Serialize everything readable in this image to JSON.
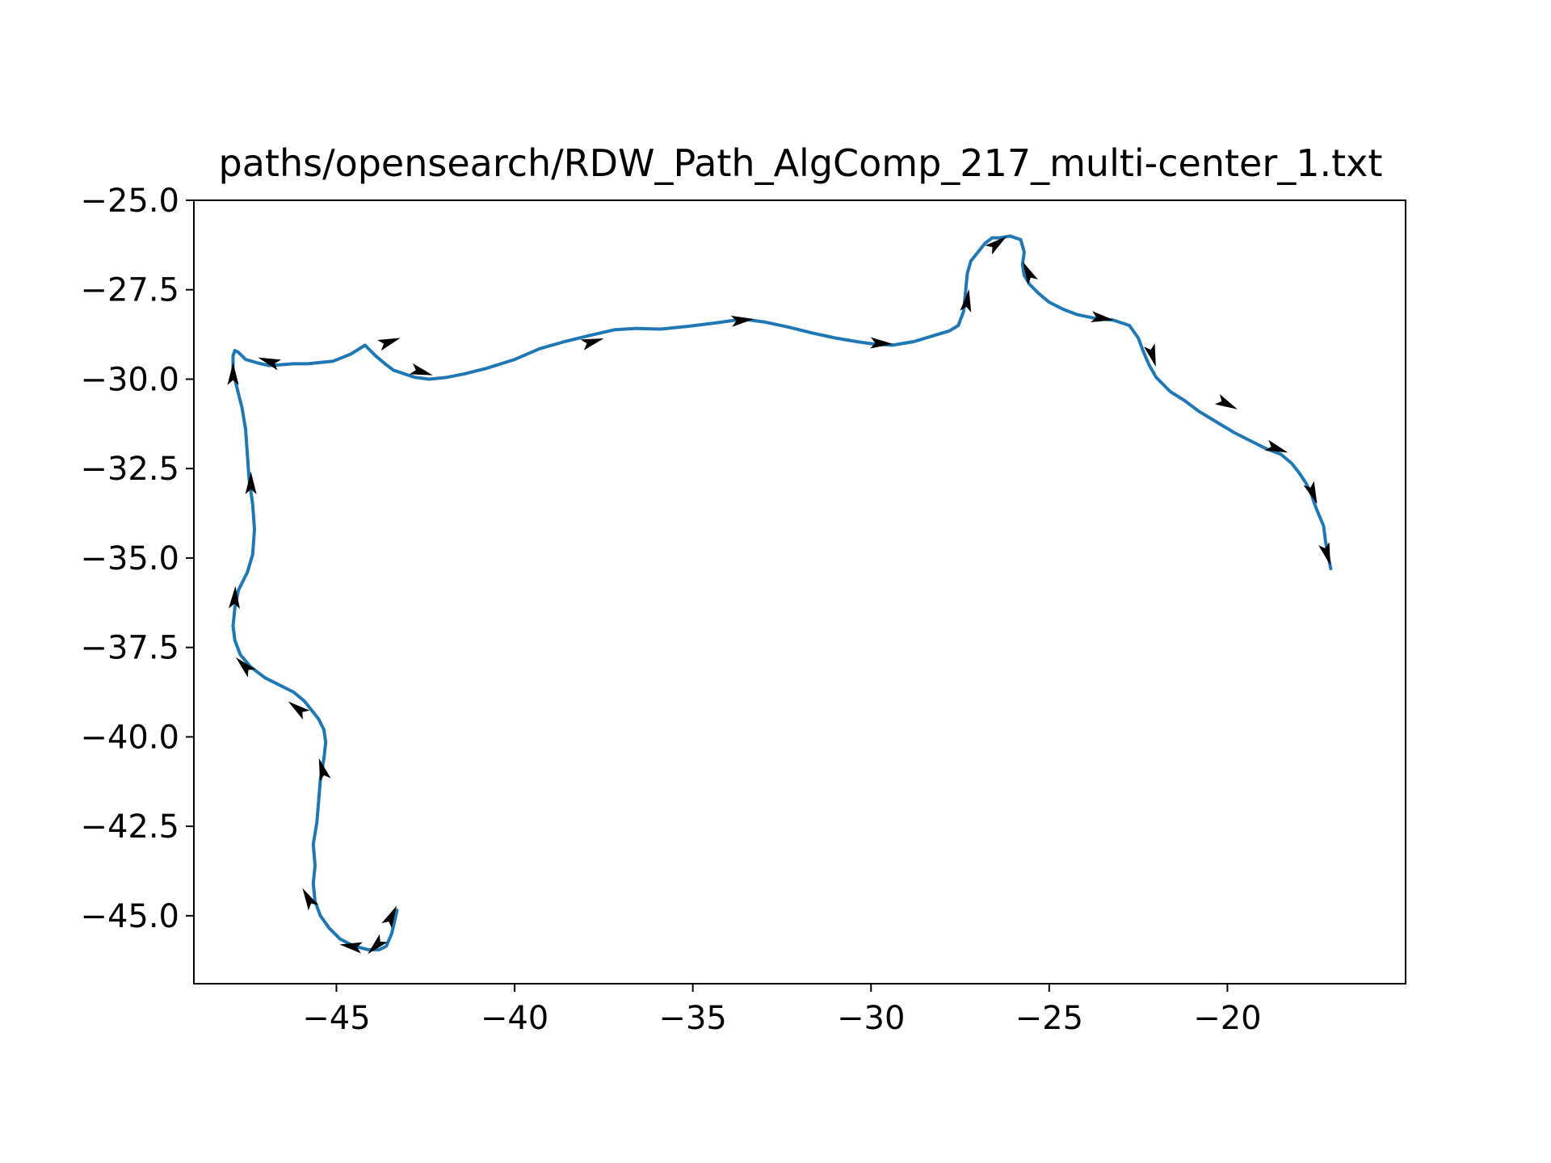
{
  "chart_data": {
    "type": "line",
    "title": "paths/opensearch/RDW_Path_AlgComp_217_multi-center_1.txt",
    "xlabel": "",
    "ylabel": "",
    "xlim": [
      -49.0,
      -15.0
    ],
    "ylim": [
      -46.9,
      -25.0
    ],
    "x_ticks": [
      -45,
      -40,
      -35,
      -30,
      -25,
      -20
    ],
    "x_tick_labels": [
      "−45",
      "−40",
      "−35",
      "−30",
      "−25",
      "−20"
    ],
    "y_ticks": [
      -25.0,
      -27.5,
      -30.0,
      -32.5,
      -35.0,
      -37.5,
      -40.0,
      -42.5,
      -45.0
    ],
    "y_tick_labels": [
      "−25.0",
      "−27.5",
      "−30.0",
      "−32.5",
      "−35.0",
      "−37.5",
      "−40.0",
      "−42.5",
      "−45.0"
    ],
    "grid": false,
    "colors": {
      "path": "#1f77b4",
      "arrow": "#000000",
      "axes": "#000000"
    },
    "series": [
      {
        "x": [
          -43.3,
          -43.45,
          -43.6,
          -43.8,
          -44.1,
          -44.5,
          -44.9,
          -45.2,
          -45.45,
          -45.6,
          -45.65,
          -45.6,
          -45.65,
          -45.55,
          -45.5,
          -45.45,
          -45.35,
          -45.3,
          -45.35,
          -45.5,
          -45.7,
          -45.9,
          -46.2,
          -46.6,
          -47.0,
          -47.4,
          -47.7,
          -47.85,
          -47.9,
          -47.85,
          -47.75,
          -47.5,
          -47.35,
          -47.3,
          -47.35,
          -47.45,
          -47.5,
          -47.55,
          -47.65,
          -47.8,
          -47.9,
          -47.9,
          -47.85,
          -47.75,
          -47.55,
          -47.2,
          -46.9,
          -46.6,
          -46.2,
          -45.8,
          -45.1,
          -44.6,
          -44.2,
          -43.9,
          -43.6,
          -43.4,
          -43.1,
          -42.8,
          -42.4,
          -41.9,
          -41.4,
          -40.8,
          -40.0,
          -39.3,
          -38.6,
          -37.9,
          -37.2,
          -36.6,
          -35.9,
          -35.1,
          -34.3,
          -33.6,
          -33.0,
          -32.3,
          -31.6,
          -31.0,
          -30.4,
          -29.9,
          -29.4,
          -28.8,
          -28.3,
          -27.8,
          -27.55,
          -27.4,
          -27.35,
          -27.3,
          -27.2,
          -27.0,
          -26.8,
          -26.6,
          -26.4,
          -26.1,
          -25.8,
          -25.7,
          -25.75,
          -25.7,
          -25.55,
          -25.3,
          -25.0,
          -24.6,
          -24.2,
          -23.7,
          -23.2,
          -22.75,
          -22.5,
          -22.35,
          -22.2,
          -22.0,
          -21.6,
          -21.2,
          -20.8,
          -20.3,
          -19.8,
          -19.3,
          -18.9,
          -18.5,
          -18.2,
          -18.0,
          -17.8,
          -17.65,
          -17.55,
          -17.45,
          -17.3,
          -17.25,
          -17.2,
          -17.1
        ],
        "y": [
          -44.85,
          -45.5,
          -45.85,
          -45.95,
          -45.95,
          -45.85,
          -45.65,
          -45.35,
          -45.0,
          -44.6,
          -44.1,
          -43.6,
          -43.0,
          -42.4,
          -41.8,
          -41.2,
          -40.6,
          -40.15,
          -39.8,
          -39.5,
          -39.25,
          -39.0,
          -38.75,
          -38.55,
          -38.35,
          -38.05,
          -37.7,
          -37.3,
          -36.9,
          -36.4,
          -35.9,
          -35.4,
          -34.9,
          -34.2,
          -33.5,
          -32.8,
          -32.1,
          -31.4,
          -30.8,
          -30.2,
          -29.8,
          -29.35,
          -29.2,
          -29.25,
          -29.45,
          -29.55,
          -29.62,
          -29.6,
          -29.57,
          -29.57,
          -29.5,
          -29.3,
          -29.05,
          -29.35,
          -29.6,
          -29.75,
          -29.85,
          -29.95,
          -30.0,
          -29.95,
          -29.85,
          -29.7,
          -29.45,
          -29.15,
          -28.95,
          -28.78,
          -28.62,
          -28.58,
          -28.6,
          -28.52,
          -28.42,
          -28.32,
          -28.4,
          -28.55,
          -28.72,
          -28.85,
          -28.95,
          -29.02,
          -29.05,
          -28.95,
          -28.8,
          -28.65,
          -28.5,
          -28.1,
          -27.6,
          -27.05,
          -26.7,
          -26.45,
          -26.2,
          -26.05,
          -26.05,
          -26.0,
          -26.1,
          -26.45,
          -26.8,
          -27.1,
          -27.35,
          -27.6,
          -27.85,
          -28.05,
          -28.2,
          -28.3,
          -28.35,
          -28.5,
          -28.85,
          -29.25,
          -29.6,
          -29.95,
          -30.35,
          -30.6,
          -30.9,
          -31.2,
          -31.5,
          -31.75,
          -31.95,
          -32.1,
          -32.35,
          -32.6,
          -32.9,
          -33.2,
          -33.5,
          -33.75,
          -34.1,
          -34.5,
          -34.8,
          -35.3
        ]
      }
    ],
    "arrows": [
      {
        "x": -47.9,
        "y": -29.85,
        "dx": 0.0,
        "dy": 1.0
      },
      {
        "x": -46.9,
        "y": -29.5,
        "dx": -1.0,
        "dy": 0.35
      },
      {
        "x": -47.4,
        "y": -32.9,
        "dx": 0.0,
        "dy": 1.0
      },
      {
        "x": -47.85,
        "y": -36.1,
        "dx": 0.05,
        "dy": 1.0
      },
      {
        "x": -47.6,
        "y": -38.0,
        "dx": -0.7,
        "dy": 0.7
      },
      {
        "x": -46.1,
        "y": -39.2,
        "dx": -0.8,
        "dy": 0.6
      },
      {
        "x": -45.4,
        "y": -40.9,
        "dx": -0.3,
        "dy": 1.0
      },
      {
        "x": -45.8,
        "y": -44.5,
        "dx": -0.5,
        "dy": 0.9
      },
      {
        "x": -44.6,
        "y": -45.85,
        "dx": -1.0,
        "dy": 0.15
      },
      {
        "x": -43.9,
        "y": -45.85,
        "dx": -0.7,
        "dy": -0.7
      },
      {
        "x": -43.45,
        "y": -45.0,
        "dx": 0.45,
        "dy": 0.9
      },
      {
        "x": -43.5,
        "y": -28.95,
        "dx": 1.0,
        "dy": 0.35
      },
      {
        "x": -42.6,
        "y": -29.8,
        "dx": 1.0,
        "dy": -0.3
      },
      {
        "x": -37.8,
        "y": -28.95,
        "dx": 1.0,
        "dy": 0.3
      },
      {
        "x": -33.6,
        "y": -28.35,
        "dx": 1.0,
        "dy": 0.1
      },
      {
        "x": -29.7,
        "y": -29.0,
        "dx": 1.0,
        "dy": -0.05
      },
      {
        "x": -27.3,
        "y": -27.8,
        "dx": 0.15,
        "dy": 1.0
      },
      {
        "x": -26.45,
        "y": -26.2,
        "dx": 0.8,
        "dy": 0.6
      },
      {
        "x": -25.6,
        "y": -27.0,
        "dx": -0.45,
        "dy": 0.9
      },
      {
        "x": -23.5,
        "y": -28.3,
        "dx": 1.0,
        "dy": -0.15
      },
      {
        "x": -22.1,
        "y": -29.35,
        "dx": 0.3,
        "dy": -1.0
      },
      {
        "x": -20.0,
        "y": -30.7,
        "dx": 1.0,
        "dy": -0.5
      },
      {
        "x": -18.6,
        "y": -31.95,
        "dx": 1.0,
        "dy": -0.35
      },
      {
        "x": -17.6,
        "y": -33.2,
        "dx": 0.4,
        "dy": -1.0
      },
      {
        "x": -17.2,
        "y": -34.9,
        "dx": 0.3,
        "dy": -1.0
      }
    ]
  }
}
